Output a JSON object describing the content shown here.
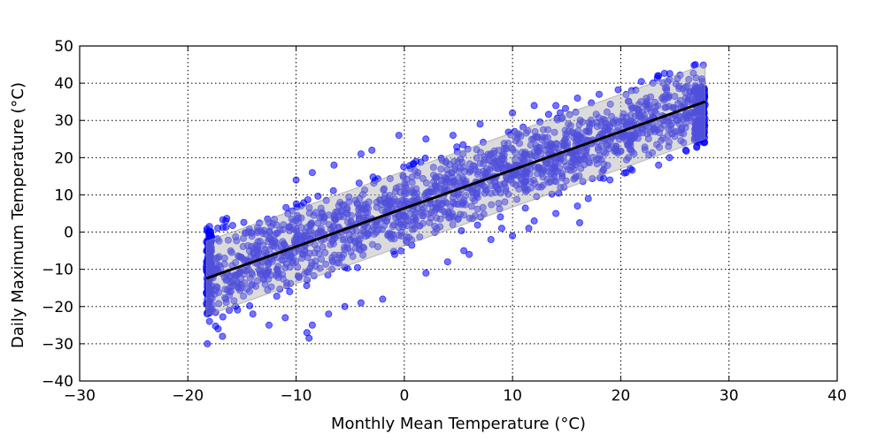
{
  "chart_data": {
    "type": "scatter",
    "title": "",
    "xlabel": "Monthly Mean Temperature (°C)",
    "ylabel": "Daily Maximum Temperature (°C)",
    "xlim": [
      -30,
      40
    ],
    "ylim": [
      -40,
      50
    ],
    "x_ticks": [
      -30,
      -20,
      -10,
      0,
      10,
      20,
      30,
      40
    ],
    "y_ticks": [
      -40,
      -30,
      -20,
      -10,
      0,
      10,
      20,
      30,
      40,
      50
    ],
    "x_tick_labels": [
      "−30",
      "−20",
      "−10",
      "0",
      "10",
      "20",
      "30",
      "40"
    ],
    "y_tick_labels": [
      "−40",
      "−30",
      "−20",
      "−10",
      "0",
      "10",
      "20",
      "30",
      "40",
      "50"
    ],
    "grid": true,
    "point_color": "#0000ff",
    "band_color": "#b0b0b0",
    "fit_line_color": "#000000",
    "x_data_range": [
      -18.3,
      27.8
    ],
    "regression": {
      "slope": 1.03,
      "intercept": 6.4,
      "x_range": [
        -18.3,
        27.8
      ]
    },
    "prediction_band_halfwidth": 10,
    "outlier_points": [
      [
        -18.2,
        -22
      ],
      [
        -18.0,
        -24
      ],
      [
        -17.2,
        -26
      ],
      [
        -16.8,
        -28
      ],
      [
        -16.5,
        -18
      ],
      [
        -14.0,
        -22
      ],
      [
        -12.5,
        -25
      ],
      [
        -11.0,
        -23
      ],
      [
        -9.0,
        -27
      ],
      [
        -8.8,
        -28.5
      ],
      [
        -8.5,
        -25
      ],
      [
        -7.0,
        -22
      ],
      [
        -5.5,
        -20
      ],
      [
        -2.0,
        -18
      ],
      [
        -4.0,
        -19
      ],
      [
        -10.0,
        14
      ],
      [
        -8.5,
        16
      ],
      [
        -6.5,
        18
      ],
      [
        -4.0,
        21
      ],
      [
        -3.0,
        22
      ],
      [
        -0.5,
        26
      ],
      [
        2.0,
        25
      ],
      [
        4.5,
        26
      ],
      [
        7.0,
        29
      ],
      [
        10.0,
        32
      ],
      [
        12.0,
        34
      ],
      [
        14.0,
        34
      ],
      [
        16.0,
        36
      ],
      [
        18.0,
        37
      ],
      [
        21.0,
        38
      ],
      [
        23.5,
        42
      ],
      [
        24.5,
        41
      ],
      [
        26.0,
        39
      ],
      [
        26.0,
        22
      ],
      [
        24.5,
        20
      ],
      [
        23.5,
        18
      ],
      [
        20.5,
        16
      ],
      [
        19.0,
        14
      ],
      [
        17.0,
        9
      ],
      [
        16.0,
        7
      ],
      [
        16.2,
        2.5
      ],
      [
        14.0,
        5
      ],
      [
        12.0,
        3
      ],
      [
        11.5,
        1
      ],
      [
        10.0,
        -1
      ],
      [
        9.0,
        1
      ],
      [
        8.0,
        -2
      ],
      [
        6.0,
        -6
      ],
      [
        5.5,
        -5
      ],
      [
        4.0,
        -8
      ],
      [
        2.0,
        -11
      ],
      [
        -16.5,
        3
      ],
      [
        -18.0,
        1.5
      ],
      [
        -18.2,
        -30
      ]
    ]
  }
}
